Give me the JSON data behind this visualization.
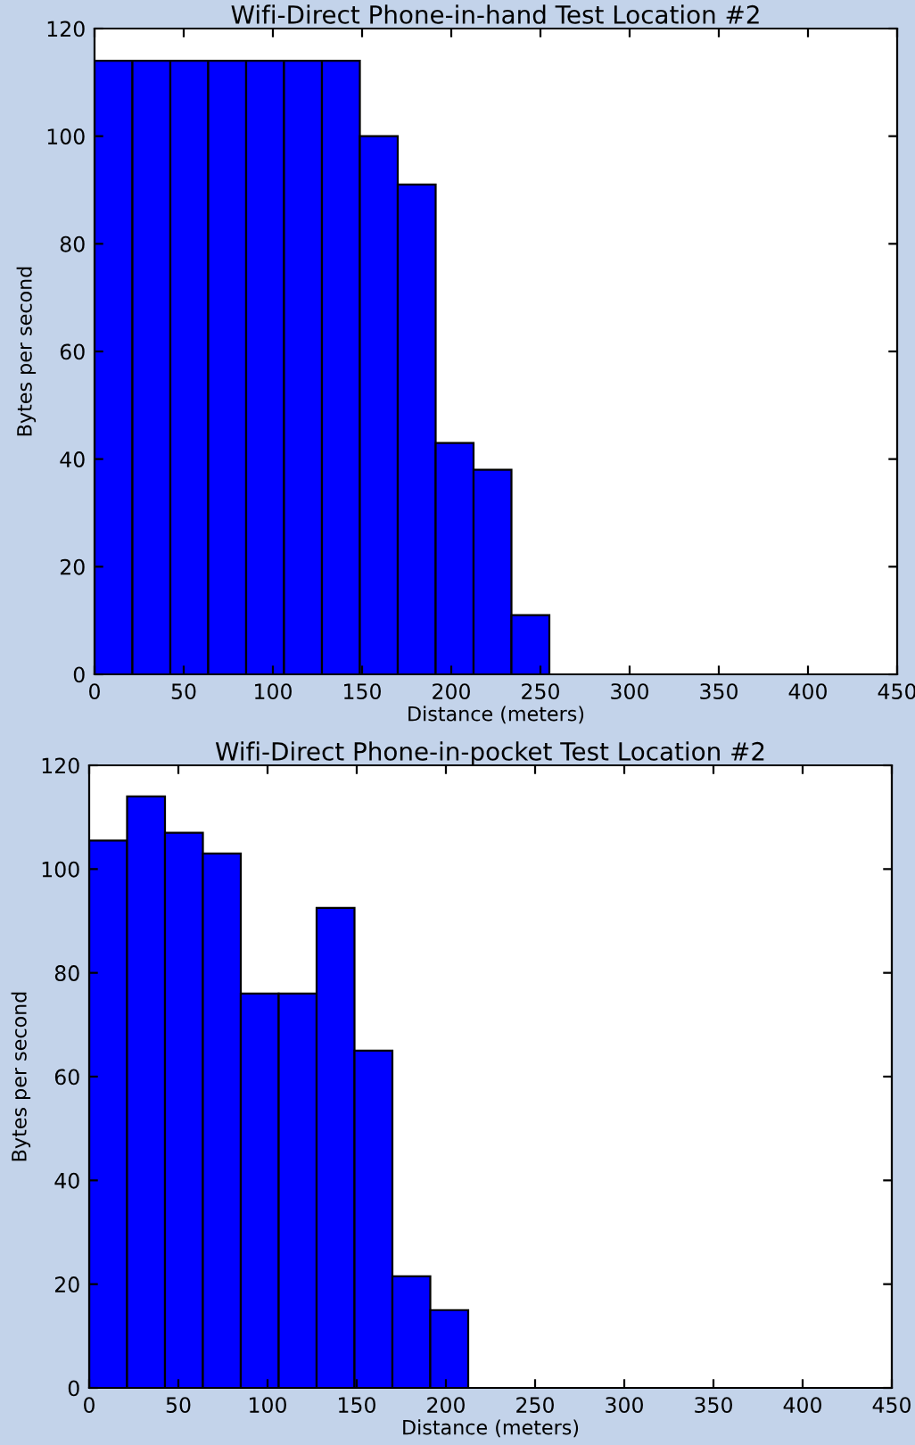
{
  "chart_data": [
    {
      "type": "histogram",
      "title": "Wifi-Direct Phone-in-hand Test Location #2",
      "xlabel": "Distance (meters)",
      "ylabel": "Bytes per second",
      "color": "#0000ff",
      "bins": [
        0,
        21.25,
        42.5,
        63.75,
        85,
        106.25,
        127.5,
        148.75,
        170,
        191.25,
        212.5,
        233.75,
        255,
        276.25,
        297.5,
        318.75,
        340,
        361.25,
        382.5,
        403.75,
        425
      ],
      "values": [
        114,
        114,
        114,
        114,
        114,
        114,
        114,
        100,
        91,
        43,
        38,
        11,
        0,
        0,
        0,
        0,
        0,
        0,
        0,
        0
      ],
      "xlim": [
        0,
        450
      ],
      "xticks": [
        0,
        50,
        100,
        150,
        200,
        250,
        300,
        350,
        400,
        450
      ],
      "ylim": [
        0,
        120
      ],
      "yticks": [
        0,
        20,
        40,
        60,
        80,
        100,
        120
      ],
      "grid": false
    },
    {
      "type": "histogram",
      "title": "Wifi-Direct Phone-in-pocket Test Location #2",
      "xlabel": "Distance (meters)",
      "ylabel": "Bytes per second",
      "color": "#0000ff",
      "bins": [
        0,
        21.25,
        42.5,
        63.75,
        85,
        106.25,
        127.5,
        148.75,
        170,
        191.25,
        212.5,
        233.75,
        255,
        276.25,
        297.5,
        318.75,
        340,
        361.25,
        382.5,
        403.75,
        425
      ],
      "values": [
        105.5,
        114,
        107,
        103,
        76,
        76,
        92.5,
        65,
        21.5,
        15,
        0,
        0,
        0,
        0,
        0,
        0,
        0,
        0,
        0,
        0
      ],
      "xlim": [
        0,
        450
      ],
      "xticks": [
        0,
        50,
        100,
        150,
        200,
        250,
        300,
        350,
        400,
        450
      ],
      "ylim": [
        0,
        120
      ],
      "yticks": [
        0,
        20,
        40,
        60,
        80,
        100,
        120
      ],
      "grid": false
    }
  ]
}
